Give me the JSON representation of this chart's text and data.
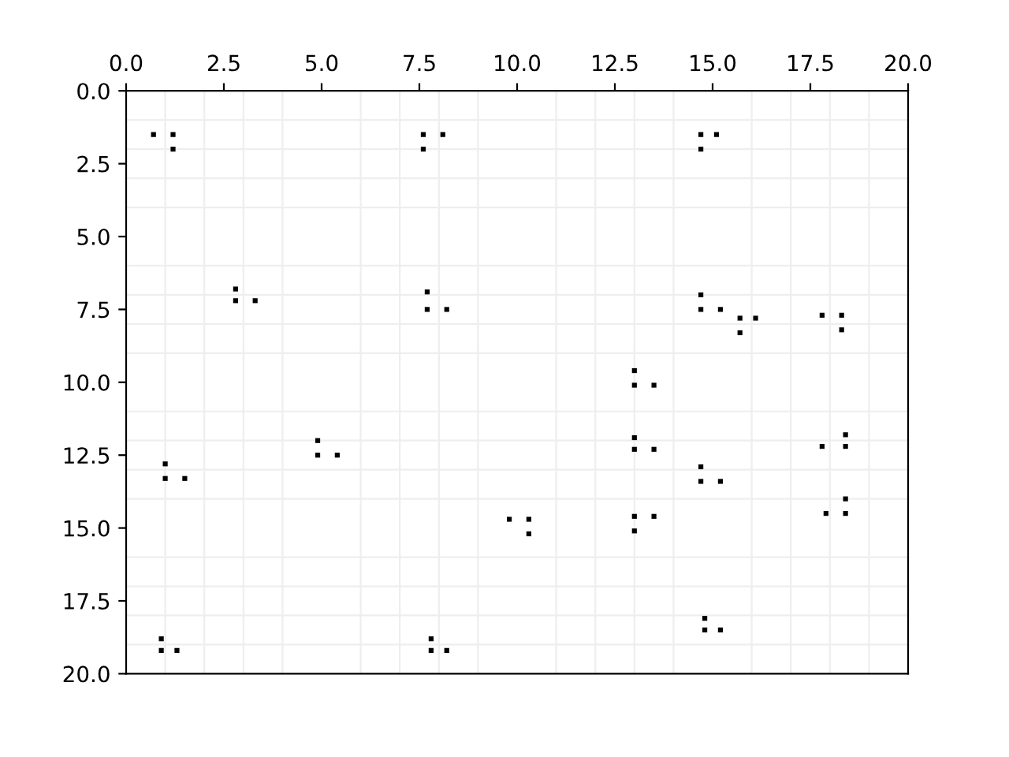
{
  "chart_data": {
    "type": "scatter",
    "marker": "square",
    "grid": true,
    "x": [
      0.7,
      1.2,
      1.2,
      7.6,
      8.1,
      7.6,
      2.8,
      3.3,
      2.8,
      7.7,
      8.2,
      7.7,
      14.7,
      15.1,
      14.7,
      14.7,
      15.2,
      14.7,
      15.7,
      16.1,
      15.7,
      17.8,
      18.3,
      18.3,
      13.0,
      13.5,
      13.0,
      1.0,
      1.5,
      1.0,
      4.9,
      5.4,
      4.9,
      0.9,
      1.3,
      0.9,
      7.8,
      8.2,
      7.8,
      9.8,
      10.3,
      10.3,
      13.0,
      13.5,
      13.0,
      14.7,
      15.2,
      14.7,
      18.4,
      17.8,
      18.4,
      18.4,
      17.9,
      18.4,
      13.0,
      13.5,
      13.0,
      14.8,
      15.2,
      14.8
    ],
    "series": [
      {
        "color": "#000000",
        "values": [
          1.5,
          1.5,
          2.0,
          1.5,
          1.5,
          2.0,
          6.8,
          7.2,
          7.2,
          6.9,
          7.5,
          7.5,
          1.5,
          1.5,
          2.0,
          7.0,
          7.5,
          7.5,
          7.8,
          7.8,
          8.3,
          7.7,
          7.7,
          8.2,
          9.6,
          10.1,
          10.1,
          12.8,
          13.3,
          13.3,
          12.0,
          12.5,
          12.5,
          18.8,
          19.2,
          19.2,
          18.8,
          19.2,
          19.2,
          14.7,
          14.7,
          15.2,
          11.9,
          12.3,
          12.3,
          12.9,
          13.4,
          13.4,
          11.8,
          12.2,
          12.2,
          14.0,
          14.5,
          14.5,
          14.6,
          14.6,
          15.1,
          18.1,
          18.5,
          18.5
        ]
      }
    ],
    "xlim": [
      0,
      20
    ],
    "ylim": [
      20,
      0
    ],
    "xticks": [
      {
        "value": 0,
        "label": "0.0"
      },
      {
        "value": 1,
        "label": null
      },
      {
        "value": 2,
        "label": null
      },
      {
        "value": 2.5,
        "label": "2.5"
      },
      {
        "value": 3,
        "label": null
      },
      {
        "value": 4,
        "label": null
      },
      {
        "value": 5,
        "label": "5.0"
      },
      {
        "value": 6,
        "label": null
      },
      {
        "value": 7,
        "label": null
      },
      {
        "value": 7.5,
        "label": "7.5"
      },
      {
        "value": 8,
        "label": null
      },
      {
        "value": 9,
        "label": null
      },
      {
        "value": 10,
        "label": "10.0"
      },
      {
        "value": 11,
        "label": null
      },
      {
        "value": 12,
        "label": null
      },
      {
        "value": 12.5,
        "label": "12.5"
      },
      {
        "value": 13,
        "label": null
      },
      {
        "value": 14,
        "label": null
      },
      {
        "value": 15,
        "label": "15.0"
      },
      {
        "value": 16,
        "label": null
      },
      {
        "value": 17,
        "label": null
      },
      {
        "value": 17.5,
        "label": "17.5"
      },
      {
        "value": 18,
        "label": null
      },
      {
        "value": 19,
        "label": null
      },
      {
        "value": 20,
        "label": "20.0"
      }
    ],
    "yticks": [
      {
        "value": 0,
        "label": "0.0"
      },
      {
        "value": 1,
        "label": null
      },
      {
        "value": 2,
        "label": null
      },
      {
        "value": 2.5,
        "label": "2.5"
      },
      {
        "value": 3,
        "label": null
      },
      {
        "value": 4,
        "label": null
      },
      {
        "value": 5,
        "label": "5.0"
      },
      {
        "value": 6,
        "label": null
      },
      {
        "value": 7,
        "label": null
      },
      {
        "value": 7.5,
        "label": "7.5"
      },
      {
        "value": 8,
        "label": null
      },
      {
        "value": 9,
        "label": null
      },
      {
        "value": 10,
        "label": "10.0"
      },
      {
        "value": 11,
        "label": null
      },
      {
        "value": 12,
        "label": null
      },
      {
        "value": 12.5,
        "label": "12.5"
      },
      {
        "value": 13,
        "label": null
      },
      {
        "value": 14,
        "label": null
      },
      {
        "value": 15,
        "label": "15.0"
      },
      {
        "value": 16,
        "label": null
      },
      {
        "value": 17,
        "label": null
      },
      {
        "value": 17.5,
        "label": "17.5"
      },
      {
        "value": 18,
        "label": null
      },
      {
        "value": 19,
        "label": null
      },
      {
        "value": 20,
        "label": "20.0"
      }
    ]
  }
}
